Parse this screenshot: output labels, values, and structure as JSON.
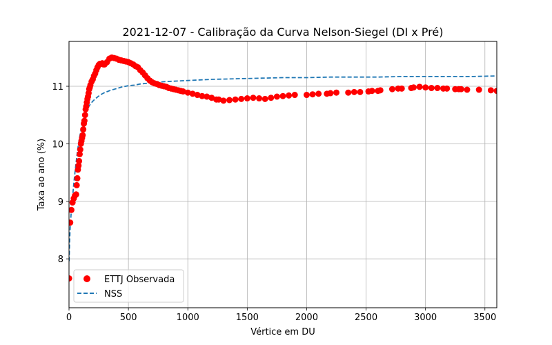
{
  "chart_data": {
    "type": "scatter",
    "title": "2021-12-07 - Calibração da Curva Nelson-Siegel (DI x Pré)",
    "xlabel": "Vértice em DU",
    "ylabel": "Taxa ao ano (%)",
    "xlim": [
      0,
      3600
    ],
    "ylim": [
      7.15,
      11.78
    ],
    "xticks": [
      0,
      500,
      1000,
      1500,
      2000,
      2500,
      3000,
      3500
    ],
    "yticks": [
      8,
      9,
      10,
      11
    ],
    "grid": true,
    "legend": {
      "placement": "lower-left"
    },
    "series": [
      {
        "name": "ETTJ Observada",
        "kind": "scatter",
        "color": "#ff0000",
        "x": [
          1,
          10,
          20,
          30,
          40,
          50,
          60,
          65,
          70,
          75,
          80,
          85,
          90,
          95,
          100,
          105,
          110,
          115,
          120,
          125,
          130,
          135,
          140,
          145,
          150,
          155,
          160,
          165,
          170,
          175,
          180,
          190,
          200,
          210,
          220,
          230,
          240,
          250,
          260,
          270,
          280,
          290,
          300,
          320,
          340,
          360,
          380,
          400,
          420,
          440,
          460,
          480,
          500,
          520,
          540,
          560,
          580,
          600,
          620,
          640,
          660,
          680,
          700,
          720,
          740,
          760,
          780,
          800,
          820,
          840,
          860,
          880,
          900,
          920,
          940,
          960,
          1000,
          1040,
          1080,
          1120,
          1160,
          1200,
          1240,
          1260,
          1300,
          1350,
          1400,
          1450,
          1500,
          1550,
          1600,
          1650,
          1700,
          1750,
          1800,
          1850,
          1900,
          2000,
          2050,
          2100,
          2170,
          2200,
          2250,
          2350,
          2400,
          2450,
          2520,
          2550,
          2600,
          2620,
          2720,
          2770,
          2800,
          2880,
          2900,
          2950,
          3000,
          3050,
          3100,
          3150,
          3180,
          3250,
          3280,
          3300,
          3350,
          3450,
          3550,
          3600
        ],
        "y": [
          7.66,
          8.63,
          8.85,
          8.98,
          9.05,
          9.1,
          9.12,
          9.28,
          9.4,
          9.55,
          9.62,
          9.7,
          9.82,
          9.9,
          10.0,
          10.05,
          10.1,
          10.15,
          10.25,
          10.35,
          10.4,
          10.5,
          10.6,
          10.65,
          10.72,
          10.78,
          10.82,
          10.88,
          10.95,
          10.98,
          11.02,
          11.08,
          11.12,
          11.18,
          11.22,
          11.28,
          11.33,
          11.37,
          11.39,
          11.39,
          11.4,
          11.38,
          11.38,
          11.42,
          11.48,
          11.5,
          11.49,
          11.48,
          11.46,
          11.45,
          11.44,
          11.43,
          11.42,
          11.4,
          11.38,
          11.35,
          11.33,
          11.28,
          11.24,
          11.19,
          11.14,
          11.1,
          11.07,
          11.05,
          11.04,
          11.02,
          11.01,
          11.0,
          10.99,
          10.97,
          10.96,
          10.95,
          10.94,
          10.93,
          10.92,
          10.91,
          10.89,
          10.87,
          10.85,
          10.83,
          10.82,
          10.8,
          10.77,
          10.77,
          10.75,
          10.76,
          10.77,
          10.78,
          10.79,
          10.8,
          10.79,
          10.78,
          10.8,
          10.82,
          10.83,
          10.84,
          10.85,
          10.85,
          10.86,
          10.87,
          10.87,
          10.88,
          10.89,
          10.89,
          10.9,
          10.9,
          10.91,
          10.92,
          10.92,
          10.93,
          10.95,
          10.96,
          10.96,
          10.97,
          10.98,
          10.99,
          10.98,
          10.97,
          10.97,
          10.96,
          10.96,
          10.95,
          10.95,
          10.95,
          10.94,
          10.94,
          10.93,
          10.92
        ]
      },
      {
        "name": "NSS",
        "kind": "line",
        "style": "dashed",
        "color": "#1f77b4",
        "x": [
          1,
          5,
          10,
          20,
          30,
          40,
          50,
          60,
          70,
          80,
          90,
          100,
          110,
          120,
          130,
          140,
          150,
          160,
          170,
          180,
          200,
          220,
          250,
          280,
          300,
          350,
          400,
          450,
          500,
          550,
          600,
          700,
          800,
          900,
          1000,
          1200,
          1400,
          1600,
          1800,
          2000,
          2200,
          2400,
          2600,
          2800,
          3000,
          3200,
          3400,
          3600
        ],
        "y": [
          7.96,
          8.3,
          8.55,
          8.85,
          9.08,
          9.3,
          9.5,
          9.68,
          9.85,
          10.0,
          10.12,
          10.23,
          10.32,
          10.4,
          10.47,
          10.53,
          10.58,
          10.62,
          10.66,
          10.69,
          10.74,
          10.78,
          10.83,
          10.87,
          10.89,
          10.93,
          10.96,
          10.99,
          11.01,
          11.02,
          11.04,
          11.06,
          11.08,
          11.09,
          11.1,
          11.12,
          11.13,
          11.14,
          11.15,
          11.15,
          11.16,
          11.16,
          11.16,
          11.17,
          11.17,
          11.17,
          11.17,
          11.18
        ]
      }
    ]
  }
}
